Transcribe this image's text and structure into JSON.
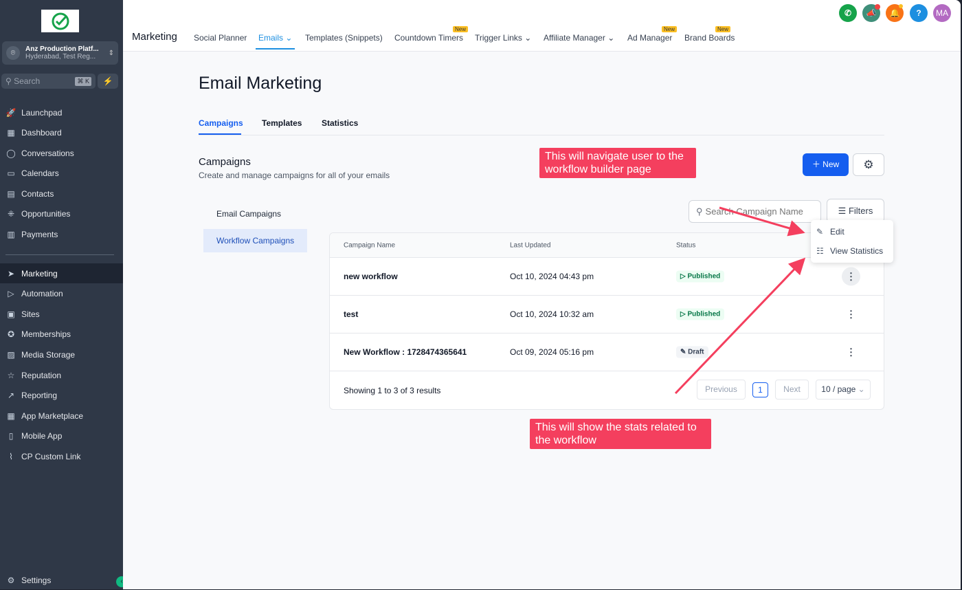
{
  "sidebar": {
    "account": {
      "name": "Anz Production Platf...",
      "location": "Hyderabad, Test Reg..."
    },
    "search": {
      "placeholder": "Search",
      "shortcut": "⌘ K"
    },
    "items": [
      {
        "label": "Launchpad",
        "icon": "rocket-icon"
      },
      {
        "label": "Dashboard",
        "icon": "grid-icon"
      },
      {
        "label": "Conversations",
        "icon": "chat-icon"
      },
      {
        "label": "Calendars",
        "icon": "calendar-icon"
      },
      {
        "label": "Contacts",
        "icon": "contacts-icon"
      },
      {
        "label": "Opportunities",
        "icon": "opportunities-icon"
      },
      {
        "label": "Payments",
        "icon": "payments-icon"
      },
      {
        "label": "Marketing",
        "icon": "send-icon",
        "active": true
      },
      {
        "label": "Automation",
        "icon": "automation-icon"
      },
      {
        "label": "Sites",
        "icon": "sites-icon"
      },
      {
        "label": "Memberships",
        "icon": "badge-icon"
      },
      {
        "label": "Media Storage",
        "icon": "image-icon"
      },
      {
        "label": "Reputation",
        "icon": "star-icon"
      },
      {
        "label": "Reporting",
        "icon": "trend-icon"
      },
      {
        "label": "App Marketplace",
        "icon": "apps-icon"
      },
      {
        "label": "Mobile App",
        "icon": "phone-icon"
      },
      {
        "label": "CP Custom Link",
        "icon": "link-icon"
      }
    ],
    "settings": "Settings"
  },
  "topnav": {
    "brand": "Marketing",
    "tabs": [
      {
        "label": "Social Planner"
      },
      {
        "label": "Emails",
        "active": true,
        "dropdown": true
      },
      {
        "label": "Templates (Snippets)"
      },
      {
        "label": "Countdown Timers",
        "badge": "New"
      },
      {
        "label": "Trigger Links",
        "dropdown": true
      },
      {
        "label": "Affiliate Manager",
        "dropdown": true
      },
      {
        "label": "Ad Manager",
        "badge": "New"
      },
      {
        "label": "Brand Boards",
        "badge": "New"
      }
    ],
    "avatar": "MA",
    "icon_colors": {
      "phone": "#16a34a",
      "megaphone": "#3f8f7a",
      "bell": "#f97316",
      "help": "#1d8fe0",
      "avatar": "#b36ac2"
    }
  },
  "page": {
    "title": "Email Marketing",
    "subtabs": [
      "Campaigns",
      "Templates",
      "Statistics"
    ],
    "section_title": "Campaigns",
    "section_subtitle": "Create and manage campaigns for all of your emails",
    "new_button": "New",
    "side_tabs": [
      "Email Campaigns",
      "Workflow Campaigns"
    ],
    "search_placeholder": "Search Campaign Name",
    "filters": "Filters",
    "table": {
      "headers": [
        "Campaign Name",
        "Last Updated",
        "Status"
      ],
      "rows": [
        {
          "name": "new workflow",
          "updated": "Oct 10, 2024 04:43 pm",
          "status": "Published"
        },
        {
          "name": "test",
          "updated": "Oct 10, 2024 10:32 am",
          "status": "Published"
        },
        {
          "name": "New Workflow : 1728474365641",
          "updated": "Oct 09, 2024 05:16 pm",
          "status": "Draft"
        }
      ],
      "summary": "Showing 1 to 3 of 3 results",
      "prev": "Previous",
      "page": "1",
      "next": "Next",
      "per_page": "10 / page"
    },
    "menu": [
      "Edit",
      "View Statistics"
    ]
  },
  "annotations": {
    "top": "This will navigate user to the workflow builder page",
    "bottom": "This will show the stats related to the workflow",
    "color": "#f43f5e"
  }
}
